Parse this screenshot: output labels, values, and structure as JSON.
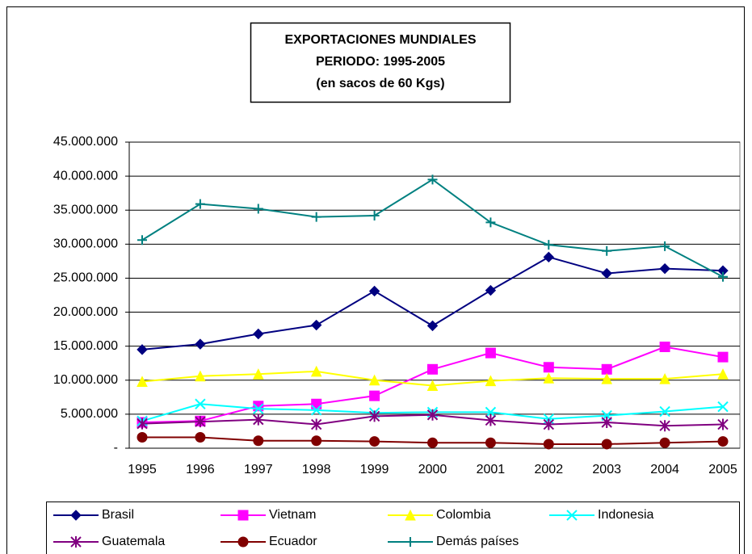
{
  "chart_data": {
    "type": "line",
    "title": [
      "EXPORTACIONES MUNDIALES",
      "PERIODO: 1995-2005",
      "(en sacos de 60 Kgs)"
    ],
    "categories": [
      "1995",
      "1996",
      "1997",
      "1998",
      "1999",
      "2000",
      "2001",
      "2002",
      "2003",
      "2004",
      "2005"
    ],
    "ylim": [
      0,
      45000000
    ],
    "yticks": [
      {
        "value": 0,
        "label": "-"
      },
      {
        "value": 5000000,
        "label": "5.000.000"
      },
      {
        "value": 10000000,
        "label": "10.000.000"
      },
      {
        "value": 15000000,
        "label": "15.000.000"
      },
      {
        "value": 20000000,
        "label": "20.000.000"
      },
      {
        "value": 25000000,
        "label": "25.000.000"
      },
      {
        "value": 30000000,
        "label": "30.000.000"
      },
      {
        "value": 35000000,
        "label": "35.000.000"
      },
      {
        "value": 40000000,
        "label": "40.000.000"
      },
      {
        "value": 45000000,
        "label": "45.000.000"
      }
    ],
    "grid": true,
    "legend": "bottom",
    "series": [
      {
        "name": "Brasil",
        "color": "#000080",
        "marker": "diamond",
        "values": [
          14500000,
          15300000,
          16800000,
          18100000,
          23100000,
          18000000,
          23200000,
          28100000,
          25700000,
          26400000,
          26100000
        ]
      },
      {
        "name": "Vietnam",
        "color": "#ff00ff",
        "marker": "square",
        "values": [
          3800000,
          4000000,
          6200000,
          6500000,
          7700000,
          11600000,
          14000000,
          11900000,
          11600000,
          14900000,
          13400000
        ]
      },
      {
        "name": "Colombia",
        "color": "#ffff00",
        "marker": "triangle",
        "values": [
          9800000,
          10600000,
          10900000,
          11300000,
          10000000,
          9200000,
          9900000,
          10300000,
          10200000,
          10200000,
          10900000
        ]
      },
      {
        "name": "Indonesia",
        "color": "#00ffff",
        "marker": "x",
        "values": [
          4000000,
          6500000,
          5800000,
          5600000,
          5200000,
          5300000,
          5300000,
          4300000,
          4800000,
          5400000,
          6100000
        ]
      },
      {
        "name": "Guatemala",
        "color": "#800080",
        "marker": "star",
        "values": [
          3600000,
          3900000,
          4200000,
          3500000,
          4700000,
          4900000,
          4100000,
          3500000,
          3800000,
          3300000,
          3500000
        ]
      },
      {
        "name": "Ecuador",
        "color": "#800000",
        "marker": "circle",
        "values": [
          1600000,
          1600000,
          1100000,
          1100000,
          1000000,
          800000,
          800000,
          600000,
          600000,
          800000,
          1000000
        ]
      },
      {
        "name": "Demás países",
        "color": "#008080",
        "marker": "plus",
        "values": [
          30600000,
          35900000,
          35200000,
          34000000,
          34200000,
          39500000,
          33200000,
          29900000,
          29000000,
          29700000,
          25200000
        ]
      }
    ]
  }
}
